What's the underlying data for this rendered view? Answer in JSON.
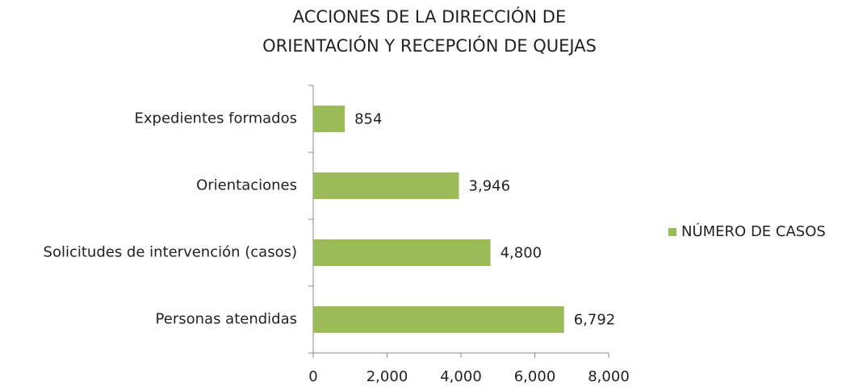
{
  "chart_data": {
    "type": "barh",
    "title": [
      "ACCIONES DE LA DIRECCIÓN DE",
      "ORIENTACIÓN Y RECEPCIÓN DE QUEJAS"
    ],
    "categories": [
      "Expedientes formados",
      "Orientaciones",
      "Solicitudes de intervención (casos)",
      "Personas atendidas"
    ],
    "series": [
      {
        "name": "NÚMERO DE CASOS",
        "color": "#9bbb59",
        "values": [
          854,
          3946,
          4800,
          6792
        ],
        "value_labels": [
          "854",
          "3,946",
          "4,800",
          "6,792"
        ]
      }
    ],
    "xlim": [
      0,
      8000
    ],
    "xticks": [
      0,
      {
        "value": 2000,
        "label": "2,000"
      },
      {
        "value": 4000,
        "label": "4,000"
      },
      {
        "value": 6000,
        "label": "6,000"
      },
      {
        "value": 8000,
        "label": "8,000"
      }
    ],
    "legend": "right"
  }
}
